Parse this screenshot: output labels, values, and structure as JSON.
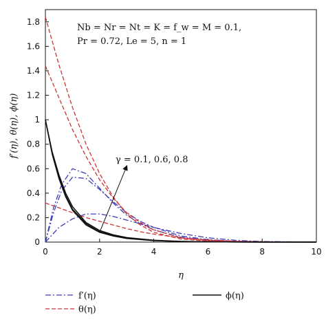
{
  "chart_data": {
    "type": "line",
    "xlabel": "η",
    "ylabel": "f′(η), θ(η), ϕ(η)",
    "xlim": [
      0,
      10
    ],
    "ylim": [
      0,
      1.9
    ],
    "x_ticks": [
      "0",
      "2",
      "4",
      "6",
      "8",
      "10"
    ],
    "y_ticks": [
      "0",
      "0.2",
      "0.4",
      "0.6",
      "0.8",
      "1",
      "1.2",
      "1.4",
      "1.6",
      "1.8"
    ],
    "grid": false,
    "legend_position": "bottom",
    "annotations": {
      "params_line1": "Nb = Nr = Nt = K = f_w = M = 0.1,",
      "params_line2": "Pr = 0.72, Le = 5, n = 1",
      "gamma_label": "γ = 0.1, 0.6, 0.8",
      "arrow_from": [
        2.0,
        0.08
      ],
      "arrow_to": [
        3.0,
        0.62
      ]
    },
    "legend": [
      {
        "label": "f′(η)",
        "style": "dash-dot",
        "color": "#3b3bb8"
      },
      {
        "label": "θ(η)",
        "style": "dashed",
        "color": "#cc3333"
      },
      {
        "label": "ϕ(η)",
        "style": "solid",
        "color": "#111111"
      }
    ],
    "series": [
      {
        "group": "f′(η)",
        "gamma": 0.1,
        "color": "#3b3bb8",
        "dash": "8 3 2 3",
        "x": [
          0,
          0.3,
          0.6,
          1.0,
          1.5,
          2,
          2.5,
          3,
          3.5,
          4,
          5,
          6,
          7,
          8,
          10
        ],
        "y": [
          0,
          0.28,
          0.47,
          0.6,
          0.56,
          0.44,
          0.32,
          0.22,
          0.15,
          0.1,
          0.04,
          0.015,
          0.005,
          0.002,
          0
        ]
      },
      {
        "group": "f′(η)",
        "gamma": 0.6,
        "color": "#3b3bb8",
        "dash": "8 3 2 3",
        "x": [
          0,
          0.3,
          0.6,
          1.0,
          1.5,
          2,
          2.5,
          3,
          3.5,
          4,
          5,
          6,
          7,
          8,
          10
        ],
        "y": [
          0,
          0.24,
          0.42,
          0.53,
          0.52,
          0.43,
          0.33,
          0.24,
          0.17,
          0.12,
          0.05,
          0.02,
          0.007,
          0.002,
          0
        ]
      },
      {
        "group": "f′(η)",
        "gamma": 0.8,
        "color": "#3b3bb8",
        "dash": "8 3 2 3",
        "x": [
          0,
          0.5,
          1.0,
          1.5,
          2,
          2.5,
          3,
          3.5,
          4,
          5,
          6,
          7,
          8,
          10
        ],
        "y": [
          0,
          0.12,
          0.19,
          0.23,
          0.23,
          0.21,
          0.18,
          0.15,
          0.12,
          0.07,
          0.035,
          0.015,
          0.005,
          0
        ]
      },
      {
        "group": "θ(η)",
        "gamma": 0.1,
        "color": "#cc3333",
        "dash": "6 3",
        "x": [
          0,
          0.5,
          1,
          1.5,
          2,
          2.5,
          3,
          3.5,
          4,
          5,
          6,
          7,
          8,
          10
        ],
        "y": [
          1.84,
          1.45,
          1.1,
          0.8,
          0.56,
          0.37,
          0.23,
          0.14,
          0.08,
          0.025,
          0.008,
          0.003,
          0.001,
          0
        ]
      },
      {
        "group": "θ(η)",
        "gamma": 0.6,
        "color": "#cc3333",
        "dash": "6 3",
        "x": [
          0,
          0.5,
          1,
          1.5,
          2,
          2.5,
          3,
          3.5,
          4,
          5,
          6,
          7,
          8,
          10
        ],
        "y": [
          1.44,
          1.18,
          0.92,
          0.7,
          0.51,
          0.36,
          0.24,
          0.16,
          0.1,
          0.035,
          0.012,
          0.004,
          0.001,
          0
        ]
      },
      {
        "group": "θ(η)",
        "gamma": 0.8,
        "color": "#cc3333",
        "dash": "6 3",
        "x": [
          0,
          0.5,
          1,
          1.5,
          2,
          2.5,
          3,
          3.5,
          4,
          5,
          6,
          7,
          8,
          10
        ],
        "y": [
          0.32,
          0.28,
          0.24,
          0.2,
          0.17,
          0.14,
          0.11,
          0.085,
          0.065,
          0.035,
          0.018,
          0.008,
          0.003,
          0
        ]
      },
      {
        "group": "ϕ(η)",
        "gamma": 0.1,
        "color": "#111111",
        "dash": "",
        "x": [
          0,
          0.25,
          0.5,
          0.75,
          1,
          1.5,
          2,
          2.5,
          3,
          4,
          5,
          6,
          8,
          10
        ],
        "y": [
          1.0,
          0.72,
          0.52,
          0.37,
          0.26,
          0.14,
          0.08,
          0.05,
          0.03,
          0.012,
          0.005,
          0.002,
          0,
          0
        ]
      },
      {
        "group": "ϕ(η)",
        "gamma": 0.6,
        "color": "#111111",
        "dash": "",
        "x": [
          0,
          0.25,
          0.5,
          0.75,
          1,
          1.5,
          2,
          2.5,
          3,
          4,
          5,
          6,
          8,
          10
        ],
        "y": [
          1.0,
          0.73,
          0.53,
          0.38,
          0.27,
          0.15,
          0.085,
          0.055,
          0.033,
          0.013,
          0.005,
          0.002,
          0,
          0
        ]
      },
      {
        "group": "ϕ(η)",
        "gamma": 0.8,
        "color": "#111111",
        "dash": "",
        "x": [
          0,
          0.25,
          0.5,
          0.75,
          1,
          1.5,
          2,
          2.5,
          3,
          4,
          5,
          6,
          8,
          10
        ],
        "y": [
          1.0,
          0.74,
          0.55,
          0.4,
          0.29,
          0.16,
          0.095,
          0.06,
          0.037,
          0.015,
          0.006,
          0.002,
          0,
          0
        ]
      }
    ]
  }
}
